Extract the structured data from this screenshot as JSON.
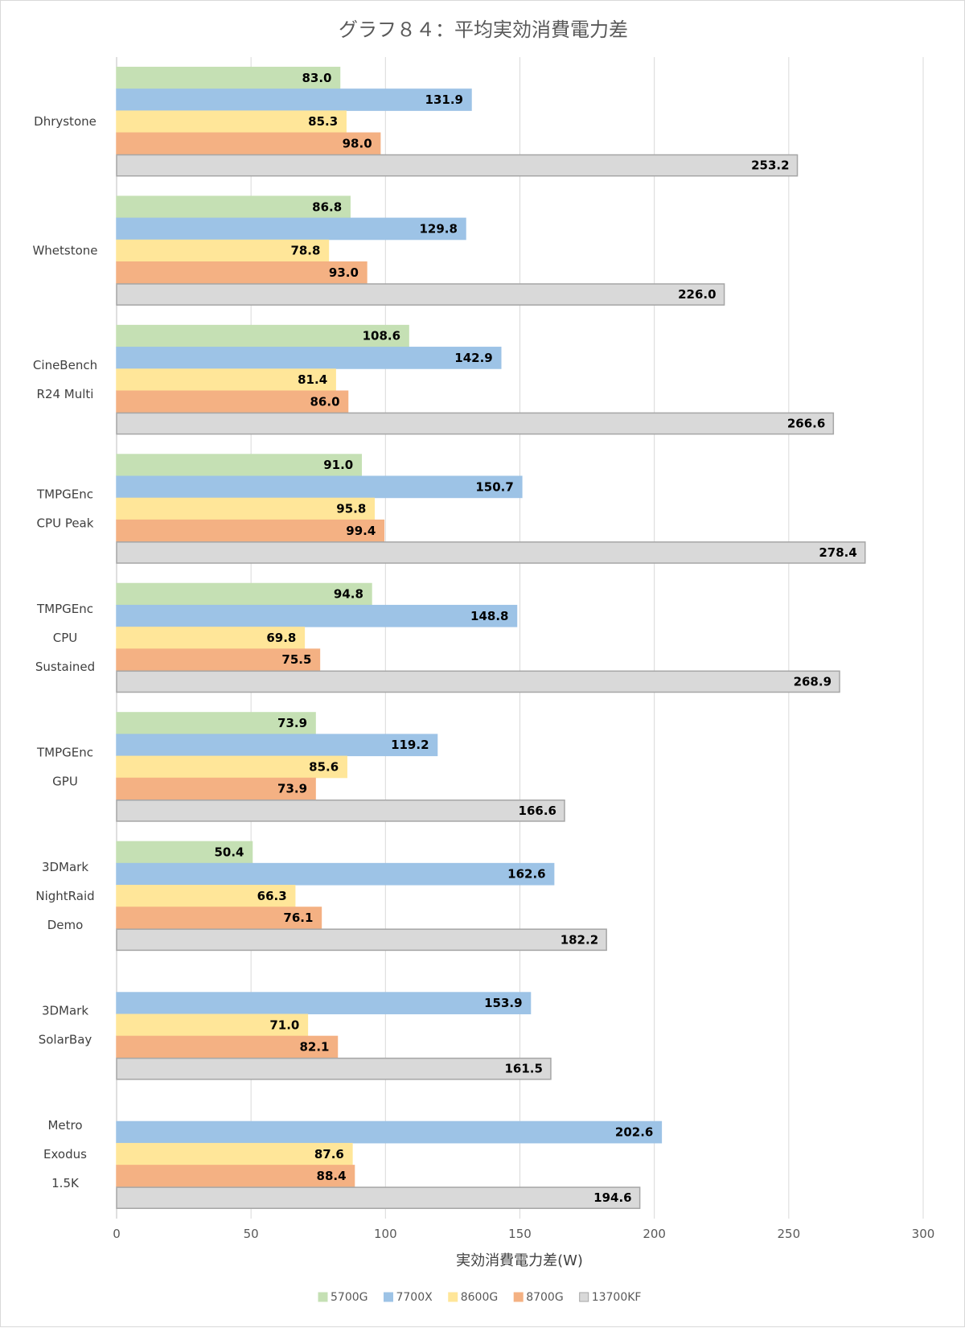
{
  "chart_data": {
    "type": "bar",
    "orientation": "horizontal",
    "title": "グラフ８４：平均実効消費電力差",
    "xlabel": "実効消費電力差(W)",
    "ylabel": "",
    "xlim": [
      0,
      300
    ],
    "xticks": [
      0,
      50,
      100,
      150,
      200,
      250,
      300
    ],
    "grid": true,
    "legend_position": "bottom",
    "categories": [
      [
        "Dhrystone"
      ],
      [
        "Whetstone"
      ],
      [
        "CineBench",
        "R24 Multi"
      ],
      [
        "TMPGEnc",
        "CPU Peak"
      ],
      [
        "TMPGEnc",
        "CPU",
        "Sustained"
      ],
      [
        "TMPGEnc",
        "GPU"
      ],
      [
        "3DMark",
        "NightRaid",
        "Demo"
      ],
      [
        "3DMark",
        "SolarBay"
      ],
      [
        "Metro",
        "Exodus",
        "1.5K"
      ]
    ],
    "series": [
      {
        "name": "5700G",
        "color": "#c5e0b4",
        "border": "#c5e0b4",
        "values": [
          83.0,
          86.8,
          108.6,
          91.0,
          94.8,
          73.9,
          50.4,
          null,
          null
        ]
      },
      {
        "name": "7700X",
        "color": "#9dc3e6",
        "border": "#9dc3e6",
        "values": [
          131.9,
          129.8,
          142.9,
          150.7,
          148.8,
          119.2,
          162.6,
          153.9,
          202.6
        ]
      },
      {
        "name": "8600G",
        "color": "#ffe699",
        "border": "#ffe699",
        "values": [
          85.3,
          78.8,
          81.4,
          95.8,
          69.8,
          85.6,
          66.3,
          71.0,
          87.6
        ]
      },
      {
        "name": "8700G",
        "color": "#f4b183",
        "border": "#f4b183",
        "values": [
          98.0,
          93.0,
          86.0,
          99.4,
          75.5,
          73.9,
          76.1,
          82.1,
          88.4
        ]
      },
      {
        "name": "13700KF",
        "color": "#d9d9d9",
        "border": "#a6a6a6",
        "values": [
          253.2,
          226.0,
          266.6,
          278.4,
          268.9,
          166.6,
          182.2,
          161.5,
          194.6
        ]
      }
    ]
  }
}
